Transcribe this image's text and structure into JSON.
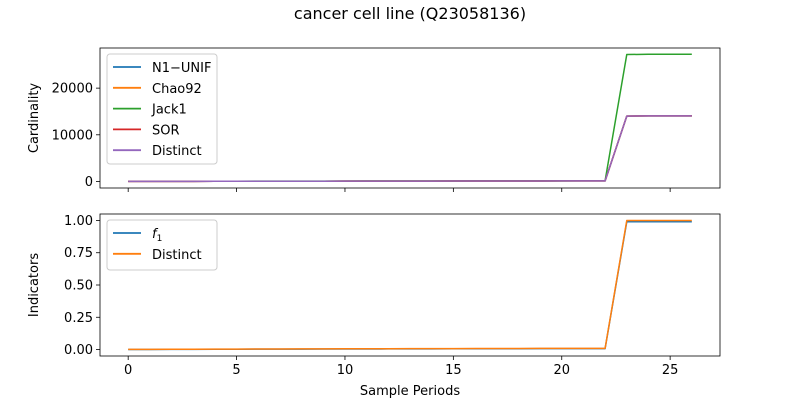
{
  "figure": {
    "title": "cancer cell line (Q23058136)"
  },
  "chart_data": [
    {
      "type": "line",
      "ylabel": "Cardinality",
      "xlabel": "",
      "xlim": [
        -1.3,
        27.3
      ],
      "ylim": [
        -1400,
        28600
      ],
      "yticks": [
        0,
        10000,
        20000
      ],
      "ytick_labels": [
        "0",
        "10000",
        "20000"
      ],
      "xticks": [
        0,
        5,
        10,
        15,
        20,
        25
      ],
      "xtick_labels": [],
      "legend_position": "upper-left",
      "x": [
        0,
        1,
        2,
        3,
        4,
        5,
        6,
        7,
        8,
        9,
        10,
        11,
        12,
        13,
        14,
        15,
        16,
        17,
        18,
        19,
        20,
        21,
        22,
        23,
        24,
        25,
        26
      ],
      "series": [
        {
          "name": "N1−UNIF",
          "color": "#1f77b4",
          "values": [
            20,
            20,
            25,
            30,
            35,
            40,
            45,
            50,
            55,
            60,
            65,
            70,
            75,
            80,
            85,
            90,
            95,
            100,
            105,
            110,
            115,
            120,
            125,
            14000,
            14050,
            14050,
            14050
          ]
        },
        {
          "name": "Chao92",
          "color": "#ff7f0e",
          "values": [
            20,
            20,
            25,
            30,
            35,
            40,
            45,
            50,
            55,
            60,
            65,
            70,
            75,
            80,
            85,
            90,
            95,
            100,
            105,
            110,
            115,
            120,
            125,
            14000,
            14050,
            14050,
            14050
          ]
        },
        {
          "name": "Jack1",
          "color": "#2ca02c",
          "values": [
            40,
            40,
            45,
            50,
            55,
            60,
            65,
            70,
            75,
            80,
            85,
            90,
            95,
            100,
            105,
            110,
            115,
            120,
            125,
            130,
            135,
            140,
            150,
            27200,
            27250,
            27250,
            27250
          ]
        },
        {
          "name": "SOR",
          "color": "#d62728",
          "values": [
            20,
            20,
            25,
            30,
            35,
            40,
            45,
            50,
            55,
            60,
            65,
            70,
            75,
            80,
            85,
            90,
            95,
            100,
            105,
            110,
            115,
            120,
            125,
            14000,
            14050,
            14050,
            14050
          ]
        },
        {
          "name": "Distinct",
          "color": "#9467bd",
          "values": [
            20,
            20,
            25,
            30,
            35,
            40,
            45,
            50,
            55,
            60,
            65,
            70,
            75,
            80,
            85,
            90,
            95,
            100,
            105,
            110,
            115,
            120,
            125,
            14000,
            14050,
            14050,
            14050
          ]
        }
      ]
    },
    {
      "type": "line",
      "ylabel": "Indicators",
      "xlabel": "Sample Periods",
      "xlim": [
        -1.3,
        27.3
      ],
      "ylim": [
        -0.05,
        1.05
      ],
      "yticks": [
        0.0,
        0.25,
        0.5,
        0.75,
        1.0
      ],
      "ytick_labels": [
        "0.00",
        "0.25",
        "0.50",
        "0.75",
        "1.00"
      ],
      "xticks": [
        0,
        5,
        10,
        15,
        20,
        25
      ],
      "xtick_labels": [
        "0",
        "5",
        "10",
        "15",
        "20",
        "25"
      ],
      "legend_position": "upper-left",
      "x": [
        0,
        1,
        2,
        3,
        4,
        5,
        6,
        7,
        8,
        9,
        10,
        11,
        12,
        13,
        14,
        15,
        16,
        17,
        18,
        19,
        20,
        21,
        22,
        23,
        24,
        25,
        26
      ],
      "series": [
        {
          "name": "f1",
          "name_main": "f",
          "name_sub": "1",
          "color": "#1f77b4",
          "values": [
            0,
            0,
            0.001,
            0.001,
            0.002,
            0.002,
            0.003,
            0.003,
            0.003,
            0.004,
            0.004,
            0.004,
            0.005,
            0.005,
            0.005,
            0.006,
            0.006,
            0.006,
            0.006,
            0.007,
            0.007,
            0.007,
            0.007,
            0.99,
            0.99,
            0.99,
            0.99
          ]
        },
        {
          "name": "Distinct",
          "color": "#ff7f0e",
          "values": [
            0.001,
            0.001,
            0.002,
            0.002,
            0.003,
            0.003,
            0.004,
            0.004,
            0.005,
            0.005,
            0.006,
            0.006,
            0.006,
            0.007,
            0.007,
            0.007,
            0.008,
            0.008,
            0.008,
            0.009,
            0.009,
            0.009,
            0.009,
            1.0,
            1.0,
            1.0,
            1.0
          ]
        }
      ]
    }
  ]
}
